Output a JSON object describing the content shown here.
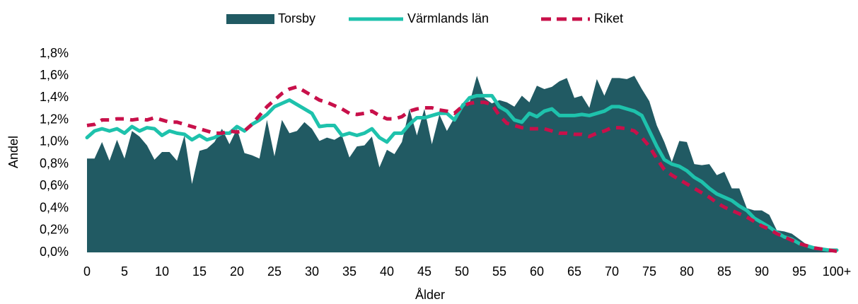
{
  "chart_data": {
    "type": "line",
    "x_label": "Ålder",
    "y_label": "Andel",
    "categories": [
      "0",
      null,
      null,
      null,
      null,
      "5",
      null,
      null,
      null,
      null,
      "10",
      null,
      null,
      null,
      null,
      "15",
      null,
      null,
      null,
      null,
      "20",
      null,
      null,
      null,
      null,
      "25",
      null,
      null,
      null,
      null,
      "30",
      null,
      null,
      null,
      null,
      "35",
      null,
      null,
      null,
      null,
      "40",
      null,
      null,
      null,
      null,
      "45",
      null,
      null,
      null,
      null,
      "50",
      null,
      null,
      null,
      null,
      "55",
      null,
      null,
      null,
      null,
      "60",
      null,
      null,
      null,
      null,
      "65",
      null,
      null,
      null,
      null,
      "70",
      null,
      null,
      null,
      null,
      "75",
      null,
      null,
      null,
      null,
      "80",
      null,
      null,
      null,
      null,
      "85",
      null,
      null,
      null,
      null,
      "90",
      null,
      null,
      null,
      null,
      "95",
      null,
      null,
      null,
      null,
      "100+"
    ],
    "ylim": [
      0,
      1.8
    ],
    "yticks": [
      {
        "value": 0,
        "label": "0,0%"
      },
      {
        "value": 0.2,
        "label": "0,2%"
      },
      {
        "value": 0.4,
        "label": "0,4%"
      },
      {
        "value": 0.6,
        "label": "0,6%"
      },
      {
        "value": 0.8,
        "label": "0,8%"
      },
      {
        "value": 1.0,
        "label": "1,0%"
      },
      {
        "value": 1.2,
        "label": "1,2%"
      },
      {
        "value": 1.4,
        "label": "1,4%"
      },
      {
        "value": 1.6,
        "label": "1,6%"
      },
      {
        "value": 1.8,
        "label": "1,8%"
      }
    ],
    "legend": "top",
    "series": [
      {
        "name": "Torsby",
        "color": "#215a63",
        "style": "area",
        "values": [
          0.85,
          0.85,
          1.0,
          0.83,
          1.02,
          0.85,
          1.1,
          1.05,
          0.97,
          0.84,
          0.91,
          0.91,
          0.83,
          1.06,
          0.62,
          0.92,
          0.94,
          1.0,
          1.12,
          0.98,
          1.12,
          0.9,
          0.88,
          0.85,
          1.2,
          0.87,
          1.2,
          1.08,
          1.1,
          1.18,
          1.12,
          1.01,
          1.04,
          1.02,
          1.06,
          0.86,
          0.96,
          0.97,
          1.05,
          0.77,
          0.93,
          0.89,
          1.0,
          1.3,
          1.06,
          1.3,
          0.98,
          1.25,
          1.1,
          1.22,
          1.35,
          1.35,
          1.6,
          1.4,
          1.35,
          1.38,
          1.36,
          1.32,
          1.42,
          1.36,
          1.51,
          1.48,
          1.5,
          1.55,
          1.58,
          1.4,
          1.42,
          1.31,
          1.57,
          1.42,
          1.58,
          1.58,
          1.57,
          1.6,
          1.48,
          1.37,
          1.15,
          1.0,
          0.82,
          1.01,
          1.0,
          0.8,
          0.79,
          0.8,
          0.7,
          0.73,
          0.58,
          0.58,
          0.4,
          0.38,
          0.38,
          0.34,
          0.2,
          0.19,
          0.17,
          0.12,
          0.07,
          0.04,
          0.03,
          0.02,
          0.02
        ]
      },
      {
        "name": "Värmlands län",
        "color": "#1ec2ac",
        "style": "solid",
        "values": [
          1.04,
          1.1,
          1.12,
          1.1,
          1.12,
          1.08,
          1.14,
          1.1,
          1.13,
          1.12,
          1.06,
          1.1,
          1.08,
          1.07,
          1.02,
          1.06,
          1.02,
          1.04,
          1.08,
          1.08,
          1.14,
          1.1,
          1.16,
          1.2,
          1.25,
          1.32,
          1.35,
          1.38,
          1.34,
          1.3,
          1.26,
          1.14,
          1.15,
          1.15,
          1.06,
          1.08,
          1.06,
          1.08,
          1.12,
          1.04,
          1.0,
          1.08,
          1.08,
          1.16,
          1.22,
          1.22,
          1.24,
          1.26,
          1.26,
          1.2,
          1.32,
          1.4,
          1.42,
          1.42,
          1.42,
          1.32,
          1.28,
          1.2,
          1.18,
          1.26,
          1.23,
          1.28,
          1.3,
          1.24,
          1.24,
          1.24,
          1.25,
          1.24,
          1.26,
          1.28,
          1.32,
          1.32,
          1.3,
          1.28,
          1.24,
          1.1,
          0.96,
          0.84,
          0.8,
          0.78,
          0.74,
          0.68,
          0.64,
          0.58,
          0.53,
          0.5,
          0.47,
          0.42,
          0.38,
          0.31,
          0.27,
          0.23,
          0.18,
          0.14,
          0.12,
          0.08,
          0.06,
          0.04,
          0.03,
          0.02,
          0.02
        ]
      },
      {
        "name": "Riket",
        "color": "#c8104a",
        "style": "dashed",
        "values": [
          1.15,
          1.16,
          1.2,
          1.2,
          1.21,
          1.21,
          1.2,
          1.21,
          1.2,
          1.22,
          1.2,
          1.18,
          1.18,
          1.16,
          1.14,
          1.12,
          1.1,
          1.08,
          1.08,
          1.1,
          1.09,
          1.1,
          1.16,
          1.24,
          1.32,
          1.38,
          1.44,
          1.48,
          1.5,
          1.46,
          1.42,
          1.38,
          1.36,
          1.33,
          1.3,
          1.26,
          1.25,
          1.26,
          1.28,
          1.24,
          1.21,
          1.21,
          1.23,
          1.28,
          1.3,
          1.31,
          1.31,
          1.29,
          1.28,
          1.26,
          1.32,
          1.35,
          1.36,
          1.36,
          1.34,
          1.24,
          1.17,
          1.15,
          1.13,
          1.12,
          1.12,
          1.12,
          1.1,
          1.08,
          1.08,
          1.07,
          1.07,
          1.05,
          1.08,
          1.1,
          1.13,
          1.13,
          1.12,
          1.1,
          1.04,
          0.96,
          0.85,
          0.75,
          0.7,
          0.66,
          0.62,
          0.58,
          0.54,
          0.5,
          0.45,
          0.41,
          0.38,
          0.35,
          0.32,
          0.28,
          0.24,
          0.21,
          0.17,
          0.14,
          0.11,
          0.08,
          0.06,
          0.04,
          0.03,
          0.02,
          0.01
        ]
      }
    ]
  }
}
